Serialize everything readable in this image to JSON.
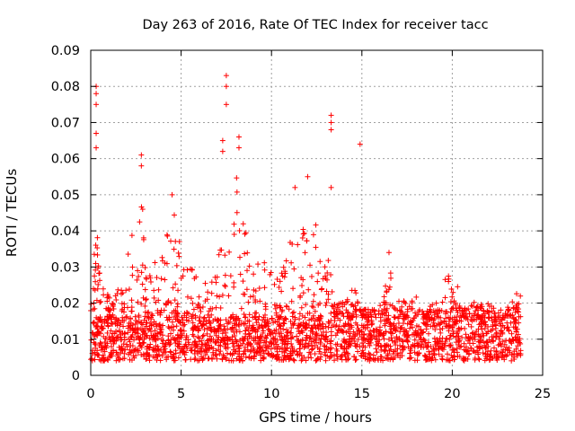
{
  "chart_data": {
    "type": "scatter",
    "title": "Day 263 of 2016, Rate Of TEC Index for receiver tacc",
    "xlabel": "GPS time / hours",
    "ylabel": "ROTI / TECUs",
    "xlim": [
      0,
      25
    ],
    "ylim": [
      0,
      0.09
    ],
    "xticks": [
      0,
      5,
      10,
      15,
      20,
      25
    ],
    "xtick_labels": [
      "0",
      "5",
      "10",
      "15",
      "20",
      "25"
    ],
    "yticks": [
      0,
      0.01,
      0.02,
      0.03,
      0.04,
      0.05,
      0.06,
      0.07,
      0.08,
      0.09
    ],
    "ytick_labels": [
      "0",
      "0.01",
      "0.02",
      "0.03",
      "0.04",
      "0.05",
      "0.06",
      "0.07",
      "0.08",
      "0.09"
    ],
    "grid": true,
    "marker": "+",
    "color": "#ff0000",
    "data_x_range": [
      0,
      23.8
    ],
    "baseline_range": [
      0.004,
      0.016
    ],
    "envelope": [
      [
        0.0,
        0.02
      ],
      [
        0.3,
        0.045
      ],
      [
        0.5,
        0.03
      ],
      [
        1.0,
        0.022
      ],
      [
        1.5,
        0.025
      ],
      [
        2.0,
        0.028
      ],
      [
        2.2,
        0.045
      ],
      [
        2.5,
        0.022
      ],
      [
        2.8,
        0.055
      ],
      [
        3.0,
        0.03
      ],
      [
        3.5,
        0.032
      ],
      [
        4.0,
        0.04
      ],
      [
        4.5,
        0.048
      ],
      [
        5.0,
        0.038
      ],
      [
        5.5,
        0.032
      ],
      [
        6.0,
        0.025
      ],
      [
        6.5,
        0.028
      ],
      [
        7.0,
        0.03
      ],
      [
        7.3,
        0.045
      ],
      [
        7.6,
        0.05
      ],
      [
        8.0,
        0.06
      ],
      [
        8.3,
        0.045
      ],
      [
        8.8,
        0.04
      ],
      [
        9.0,
        0.03
      ],
      [
        9.5,
        0.032
      ],
      [
        10.0,
        0.03
      ],
      [
        10.5,
        0.028
      ],
      [
        11.0,
        0.038
      ],
      [
        11.4,
        0.045
      ],
      [
        12.0,
        0.04
      ],
      [
        12.4,
        0.045
      ],
      [
        12.8,
        0.03
      ],
      [
        13.2,
        0.035
      ],
      [
        13.5,
        0.02
      ],
      [
        14.0,
        0.022
      ],
      [
        14.5,
        0.025
      ],
      [
        15.0,
        0.02
      ],
      [
        15.5,
        0.018
      ],
      [
        16.0,
        0.02
      ],
      [
        16.5,
        0.03
      ],
      [
        17.0,
        0.022
      ],
      [
        17.5,
        0.02
      ],
      [
        18.0,
        0.022
      ],
      [
        18.5,
        0.018
      ],
      [
        19.0,
        0.02
      ],
      [
        19.5,
        0.025
      ],
      [
        19.9,
        0.033
      ],
      [
        20.2,
        0.028
      ],
      [
        20.5,
        0.018
      ],
      [
        21.0,
        0.022
      ],
      [
        21.5,
        0.02
      ],
      [
        22.0,
        0.02
      ],
      [
        22.5,
        0.018
      ],
      [
        23.0,
        0.022
      ],
      [
        23.8,
        0.023
      ]
    ],
    "outliers": [
      [
        0.3,
        0.08
      ],
      [
        0.3,
        0.078
      ],
      [
        0.3,
        0.075
      ],
      [
        0.3,
        0.067
      ],
      [
        0.3,
        0.063
      ],
      [
        2.8,
        0.061
      ],
      [
        2.8,
        0.058
      ],
      [
        4.5,
        0.05
      ],
      [
        7.5,
        0.083
      ],
      [
        7.5,
        0.08
      ],
      [
        7.5,
        0.075
      ],
      [
        7.3,
        0.065
      ],
      [
        7.3,
        0.062
      ],
      [
        8.2,
        0.066
      ],
      [
        8.2,
        0.063
      ],
      [
        11.3,
        0.052
      ],
      [
        12.0,
        0.055
      ],
      [
        13.3,
        0.072
      ],
      [
        13.3,
        0.07
      ],
      [
        13.3,
        0.068
      ],
      [
        13.3,
        0.052
      ],
      [
        14.9,
        0.064
      ],
      [
        16.5,
        0.034
      ]
    ]
  }
}
